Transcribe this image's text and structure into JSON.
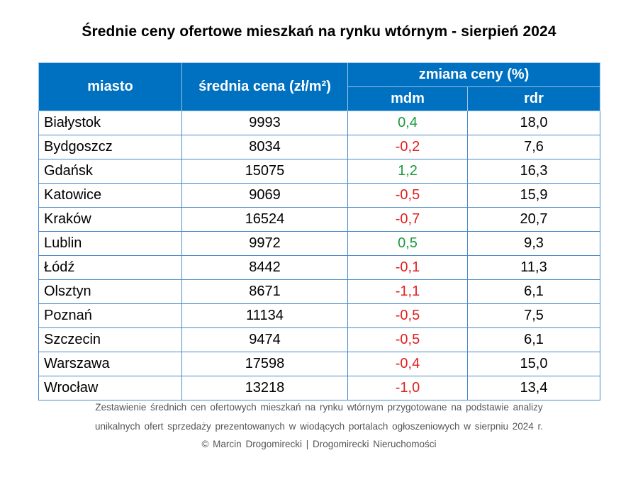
{
  "chart_data": {
    "type": "table",
    "title": "Średnie ceny ofertowe mieszkań na rynku wtórnym - sierpień 2024",
    "columns": {
      "city": "miasto",
      "price": "średnia cena (zł/m²)",
      "change_group": "zmiana ceny (%)",
      "mdm": "mdm",
      "rdr": "rdr"
    },
    "rows": [
      {
        "city": "Białystok",
        "price": "9993",
        "mdm": "0,4",
        "rdr": "18,0",
        "mdm_sign": "pos"
      },
      {
        "city": "Bydgoszcz",
        "price": "8034",
        "mdm": "-0,2",
        "rdr": "7,6",
        "mdm_sign": "neg"
      },
      {
        "city": "Gdańsk",
        "price": "15075",
        "mdm": "1,2",
        "rdr": "16,3",
        "mdm_sign": "pos"
      },
      {
        "city": "Katowice",
        "price": "9069",
        "mdm": "-0,5",
        "rdr": "15,9",
        "mdm_sign": "neg"
      },
      {
        "city": "Kraków",
        "price": "16524",
        "mdm": "-0,7",
        "rdr": "20,7",
        "mdm_sign": "neg"
      },
      {
        "city": "Lublin",
        "price": "9972",
        "mdm": "0,5",
        "rdr": "9,3",
        "mdm_sign": "pos"
      },
      {
        "city": "Łódź",
        "price": "8442",
        "mdm": "-0,1",
        "rdr": "11,3",
        "mdm_sign": "neg"
      },
      {
        "city": "Olsztyn",
        "price": "8671",
        "mdm": "-1,1",
        "rdr": "6,1",
        "mdm_sign": "neg"
      },
      {
        "city": "Poznań",
        "price": "11134",
        "mdm": "-0,5",
        "rdr": "7,5",
        "mdm_sign": "neg"
      },
      {
        "city": "Szczecin",
        "price": "9474",
        "mdm": "-0,5",
        "rdr": "6,1",
        "mdm_sign": "neg"
      },
      {
        "city": "Warszawa",
        "price": "17598",
        "mdm": "-0,4",
        "rdr": "15,0",
        "mdm_sign": "neg"
      },
      {
        "city": "Wrocław",
        "price": "13218",
        "mdm": "-1,0",
        "rdr": "13,4",
        "mdm_sign": "neg"
      }
    ],
    "footnote": [
      "Zestawienie średnich cen ofertowych mieszkań na rynku wtórnym przygotowane na podstawie analizy",
      "unikalnych ofert sprzedaży prezentowanych w wiodących portalach ogłoszeniowych w sierpniu 2024 r.",
      "© Marcin Drogomirecki | Drogomirecki Nieruchomości"
    ],
    "colors": {
      "header_bg": "#0070c0",
      "positive": "#1a9a3c",
      "negative": "#e02020"
    }
  }
}
